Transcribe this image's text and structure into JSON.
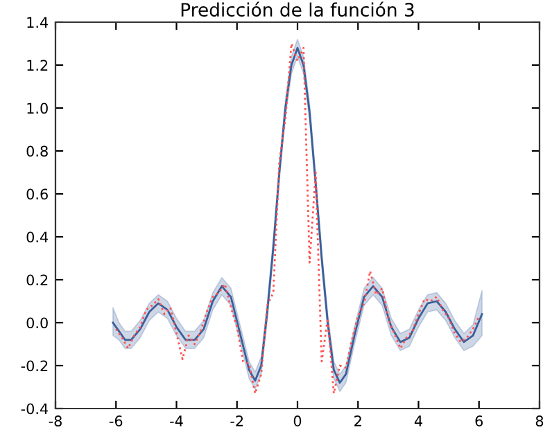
{
  "chart_data": {
    "type": "line",
    "title": "Predicción de la función 3",
    "xlim": [
      -8,
      8
    ],
    "xticks": [
      -8,
      -6,
      -4,
      -2,
      0,
      2,
      4,
      6,
      8
    ],
    "ylim": [
      -0.4,
      1.4
    ],
    "yticks": [
      -0.4,
      -0.2,
      {
        "value": 0,
        "label": "0.0"
      },
      0.2,
      0.4,
      0.6,
      0.8,
      {
        "value": 1,
        "label": "1.0"
      },
      1.2,
      1.4
    ],
    "grid": false,
    "legend": false,
    "marker": "none",
    "series": [
      {
        "color": "#ff5050",
        "line_style": "dotted",
        "x": [
          -6.0,
          -5.8,
          -5.6,
          -5.4,
          -5.2,
          -5.0,
          -4.8,
          -4.6,
          -4.4,
          -4.2,
          -4.0,
          -3.8,
          -3.6,
          -3.4,
          -3.2,
          -3.0,
          -2.8,
          -2.6,
          -2.4,
          -2.2,
          -2.0,
          -1.8,
          -1.6,
          -1.4,
          -1.2,
          -1.0,
          -0.8,
          -0.6,
          -0.4,
          -0.2,
          0.0,
          0.2,
          0.4,
          0.6,
          0.8,
          1.0,
          1.2,
          1.4,
          1.6,
          1.8,
          2.0,
          2.2,
          2.4,
          2.6,
          2.8,
          3.0,
          3.2,
          3.4,
          3.6,
          3.8,
          4.0,
          4.2,
          4.4,
          4.6,
          4.8,
          5.0,
          5.2,
          5.4,
          5.6,
          5.8,
          6.0
        ],
        "values": [
          -0.03,
          -0.07,
          -0.12,
          -0.06,
          -0.02,
          0.06,
          0.08,
          0.11,
          0.04,
          0.07,
          -0.05,
          -0.17,
          -0.06,
          -0.1,
          -0.04,
          0.05,
          0.12,
          0.14,
          0.18,
          0.07,
          -0.02,
          -0.18,
          -0.19,
          -0.33,
          -0.24,
          0.08,
          0.14,
          0.75,
          0.95,
          1.3,
          1.22,
          1.28,
          0.28,
          0.7,
          -0.18,
          0.02,
          -0.33,
          -0.2,
          -0.21,
          -0.08,
          0.03,
          0.09,
          0.24,
          0.13,
          0.16,
          0.02,
          -0.05,
          -0.12,
          -0.07,
          -0.04,
          0.04,
          0.11,
          0.1,
          0.12,
          0.06,
          0.02,
          -0.05,
          -0.09,
          -0.07,
          -0.03,
          0.03
        ]
      },
      {
        "color": "#3a5f9a",
        "line_style": "solid",
        "x": [
          -6.1,
          -5.9,
          -5.7,
          -5.5,
          -5.2,
          -4.9,
          -4.6,
          -4.3,
          -4.0,
          -3.7,
          -3.4,
          -3.1,
          -2.8,
          -2.5,
          -2.2,
          -1.9,
          -1.6,
          -1.4,
          -1.2,
          -1.0,
          -0.8,
          -0.6,
          -0.4,
          -0.2,
          0.0,
          0.2,
          0.4,
          0.6,
          0.8,
          1.0,
          1.2,
          1.4,
          1.6,
          1.9,
          2.2,
          2.5,
          2.8,
          3.1,
          3.4,
          3.7,
          4.0,
          4.3,
          4.6,
          4.9,
          5.2,
          5.5,
          5.8,
          6.1
        ],
        "values": [
          0.0,
          -0.04,
          -0.08,
          -0.08,
          -0.03,
          0.05,
          0.09,
          0.06,
          -0.02,
          -0.08,
          -0.08,
          -0.03,
          0.1,
          0.17,
          0.12,
          -0.05,
          -0.22,
          -0.27,
          -0.2,
          0.05,
          0.35,
          0.7,
          1.0,
          1.2,
          1.28,
          1.2,
          0.98,
          0.65,
          0.3,
          0.0,
          -0.22,
          -0.28,
          -0.24,
          -0.05,
          0.12,
          0.17,
          0.12,
          -0.02,
          -0.09,
          -0.07,
          0.02,
          0.09,
          0.1,
          0.05,
          -0.03,
          -0.09,
          -0.06,
          0.04
        ],
        "lower": [
          -0.06,
          -0.08,
          -0.12,
          -0.12,
          -0.07,
          0.01,
          0.05,
          0.02,
          -0.06,
          -0.12,
          -0.12,
          -0.07,
          0.06,
          0.13,
          0.08,
          -0.09,
          -0.26,
          -0.31,
          -0.24,
          0.01,
          0.31,
          0.66,
          0.96,
          1.16,
          1.24,
          1.16,
          0.94,
          0.61,
          0.26,
          -0.04,
          -0.26,
          -0.32,
          -0.28,
          -0.09,
          0.08,
          0.13,
          0.08,
          -0.06,
          -0.13,
          -0.11,
          -0.02,
          0.05,
          0.06,
          0.01,
          -0.07,
          -0.13,
          -0.11,
          -0.06
        ],
        "upper": [
          0.07,
          0.0,
          -0.04,
          -0.04,
          0.01,
          0.09,
          0.13,
          0.1,
          0.02,
          -0.04,
          -0.04,
          0.01,
          0.14,
          0.21,
          0.16,
          -0.01,
          -0.18,
          -0.23,
          -0.16,
          0.09,
          0.39,
          0.74,
          1.04,
          1.24,
          1.32,
          1.24,
          1.02,
          0.69,
          0.34,
          0.04,
          -0.18,
          -0.24,
          -0.2,
          -0.01,
          0.16,
          0.21,
          0.16,
          0.02,
          -0.05,
          -0.03,
          0.06,
          0.13,
          0.14,
          0.09,
          0.01,
          -0.05,
          -0.01,
          0.15
        ]
      }
    ]
  }
}
